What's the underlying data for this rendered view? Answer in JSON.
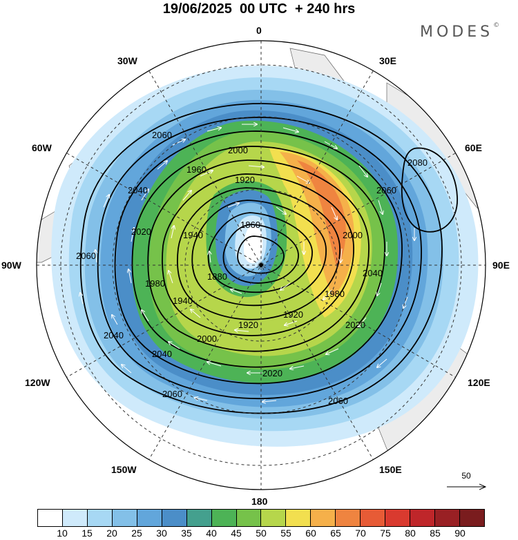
{
  "title": "19/06/2025  00 UTC  + 240 hrs",
  "brand": "MODES",
  "brand_mark": "©",
  "longitude_labels": {
    "n": "0",
    "s": "180",
    "w": "90W",
    "e": "90E",
    "nw30": "30W",
    "ne30": "30E",
    "nw60": "60W",
    "ne60": "60E",
    "sw120": "120W",
    "se120": "120E",
    "sw150": "150W",
    "se150": "150E"
  },
  "contours": [
    "1860",
    "1880",
    "1920",
    "1940",
    "1960",
    "1980",
    "2000",
    "2020",
    "2040",
    "2060",
    "2080"
  ],
  "reference_vector": "50",
  "colorbar": {
    "ticks": [
      "10",
      "15",
      "20",
      "25",
      "30",
      "35",
      "40",
      "45",
      "50",
      "55",
      "60",
      "65",
      "70",
      "75",
      "80",
      "85",
      "90"
    ],
    "colors": [
      "#ffffff",
      "#cfeafb",
      "#a7d8f4",
      "#83c0e8",
      "#62a6db",
      "#4b8ec8",
      "#44a08e",
      "#4db356",
      "#76c24a",
      "#b6d64b",
      "#f2df4f",
      "#f5b04a",
      "#ef8440",
      "#e75b36",
      "#d93a2f",
      "#bf262a",
      "#992024",
      "#7a1c1e"
    ]
  }
}
